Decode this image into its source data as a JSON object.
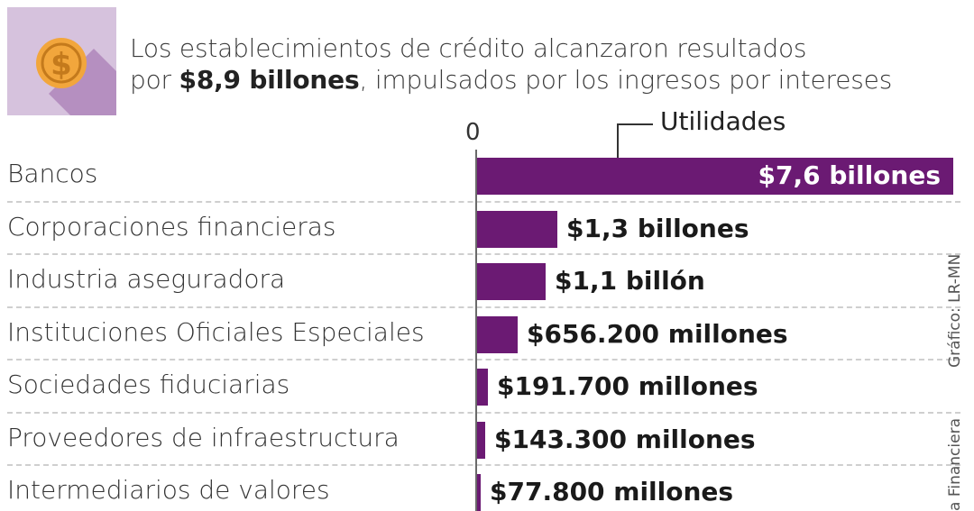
{
  "headline": {
    "part1": "Los establecimientos de crédito alcanzaron resultados",
    "part2_prefix": "por ",
    "part2_bold": "$8,9 billones",
    "part2_suffix": ", impulsados por los ingresos por intereses"
  },
  "icon": {
    "name": "dollar-coin-icon",
    "symbol": "$",
    "bg_color": "#d6c2dd",
    "coin_color": "#f2a63c"
  },
  "bar_color": "#6b1a73",
  "credits": {
    "grafico": "Gráfico: LR-MN",
    "fuente": "a Financiera"
  },
  "chart_data": {
    "type": "bar",
    "orientation": "horizontal",
    "zero_label": "0",
    "series": [
      {
        "name": "Utilidades",
        "unit": "billones de pesos",
        "values": [
          7.6,
          1.3,
          1.1,
          0.6562,
          0.1917,
          0.1433,
          0.0778
        ]
      }
    ],
    "categories": [
      "Bancos",
      "Corporaciones financieras",
      "Industria aseguradora",
      "Instituciones Oficiales Especiales",
      "Sociedades fiduciarias",
      "Proveedores de infraestructura",
      "Intermediarios de valores"
    ],
    "value_labels": [
      "$7,6 billones",
      "$1,3 billones",
      "$1,1 billón",
      "$656.200 millones",
      "$191.700 millones",
      "$143.300 millones",
      "$77.800 millones"
    ],
    "xlim": [
      0,
      7.6
    ]
  }
}
